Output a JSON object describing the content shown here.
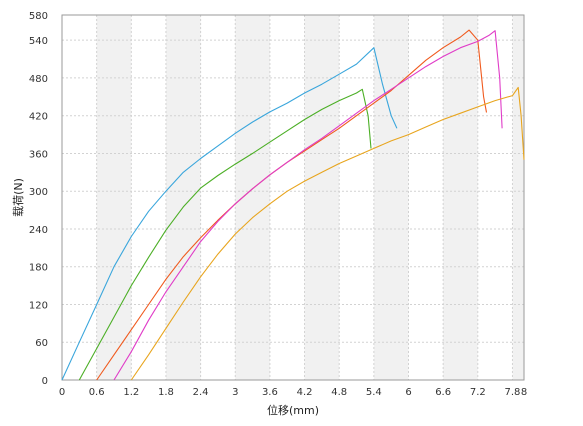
{
  "chart_data": {
    "type": "line",
    "title": "",
    "xlabel": "位移(mm)",
    "ylabel": "载荷(N)",
    "xlim": [
      0,
      8
    ],
    "ylim": [
      0,
      580
    ],
    "x_ticks": [
      "0",
      "0.6",
      "1.2",
      "1.8",
      "2.4",
      "3",
      "3.6",
      "4.2",
      "4.8",
      "5.4",
      "6",
      "6.6",
      "7.2",
      "7.8",
      "8"
    ],
    "y_ticks": [
      "0",
      "60",
      "120",
      "180",
      "240",
      "300",
      "360",
      "420",
      "480",
      "540",
      "580"
    ],
    "grid": true,
    "legend": "none",
    "background_bands": "alternating gray columns between x ticks",
    "series": [
      {
        "color": "#3aa6dc",
        "x": [
          0,
          0.3,
          0.6,
          0.9,
          1.2,
          1.5,
          1.8,
          2.1,
          2.4,
          2.7,
          3.0,
          3.3,
          3.6,
          3.9,
          4.2,
          4.5,
          4.8,
          5.1,
          5.4,
          5.55,
          5.7,
          5.8
        ],
        "y": [
          0,
          60,
          120,
          180,
          228,
          268,
          300,
          330,
          352,
          372,
          392,
          410,
          426,
          440,
          456,
          470,
          486,
          502,
          528,
          470,
          420,
          400
        ]
      },
      {
        "color": "#4caf26",
        "x": [
          0.3,
          0.6,
          0.9,
          1.2,
          1.5,
          1.8,
          2.1,
          2.4,
          2.7,
          3.0,
          3.3,
          3.6,
          3.9,
          4.2,
          4.5,
          4.8,
          5.1,
          5.2,
          5.3,
          5.35
        ],
        "y": [
          0,
          50,
          100,
          150,
          195,
          238,
          275,
          305,
          325,
          343,
          360,
          378,
          396,
          414,
          430,
          444,
          456,
          462,
          420,
          368
        ]
      },
      {
        "color": "#f05a1e",
        "x": [
          0.6,
          0.9,
          1.2,
          1.5,
          1.8,
          2.1,
          2.4,
          2.7,
          3.0,
          3.3,
          3.6,
          3.9,
          4.2,
          4.5,
          4.8,
          5.1,
          5.4,
          5.7,
          6.0,
          6.3,
          6.6,
          6.9,
          7.05,
          7.2,
          7.3,
          7.35
        ],
        "y": [
          0,
          40,
          80,
          120,
          160,
          196,
          226,
          254,
          280,
          304,
          326,
          346,
          364,
          382,
          400,
          420,
          440,
          460,
          484,
          508,
          528,
          545,
          556,
          540,
          450,
          425
        ]
      },
      {
        "color": "#e03cc8",
        "x": [
          0.9,
          1.2,
          1.5,
          1.8,
          2.1,
          2.4,
          2.7,
          3.0,
          3.3,
          3.6,
          3.9,
          4.2,
          4.5,
          4.8,
          5.1,
          5.4,
          5.7,
          6.0,
          6.3,
          6.6,
          6.9,
          7.2,
          7.4,
          7.5,
          7.58,
          7.62
        ],
        "y": [
          0,
          45,
          95,
          140,
          180,
          220,
          252,
          280,
          304,
          326,
          346,
          366,
          384,
          404,
          424,
          444,
          462,
          480,
          498,
          514,
          528,
          538,
          548,
          555,
          480,
          400
        ]
      },
      {
        "color": "#e8a51e",
        "x": [
          1.2,
          1.5,
          1.8,
          2.1,
          2.4,
          2.7,
          3.0,
          3.3,
          3.6,
          3.9,
          4.2,
          4.5,
          4.8,
          5.1,
          5.4,
          5.7,
          6.0,
          6.3,
          6.6,
          6.9,
          7.2,
          7.5,
          7.8,
          7.9,
          7.95,
          8.0
        ],
        "y": [
          0,
          40,
          82,
          124,
          164,
          200,
          232,
          258,
          280,
          300,
          316,
          330,
          344,
          356,
          368,
          380,
          390,
          402,
          414,
          424,
          434,
          444,
          452,
          465,
          420,
          350
        ]
      }
    ]
  }
}
